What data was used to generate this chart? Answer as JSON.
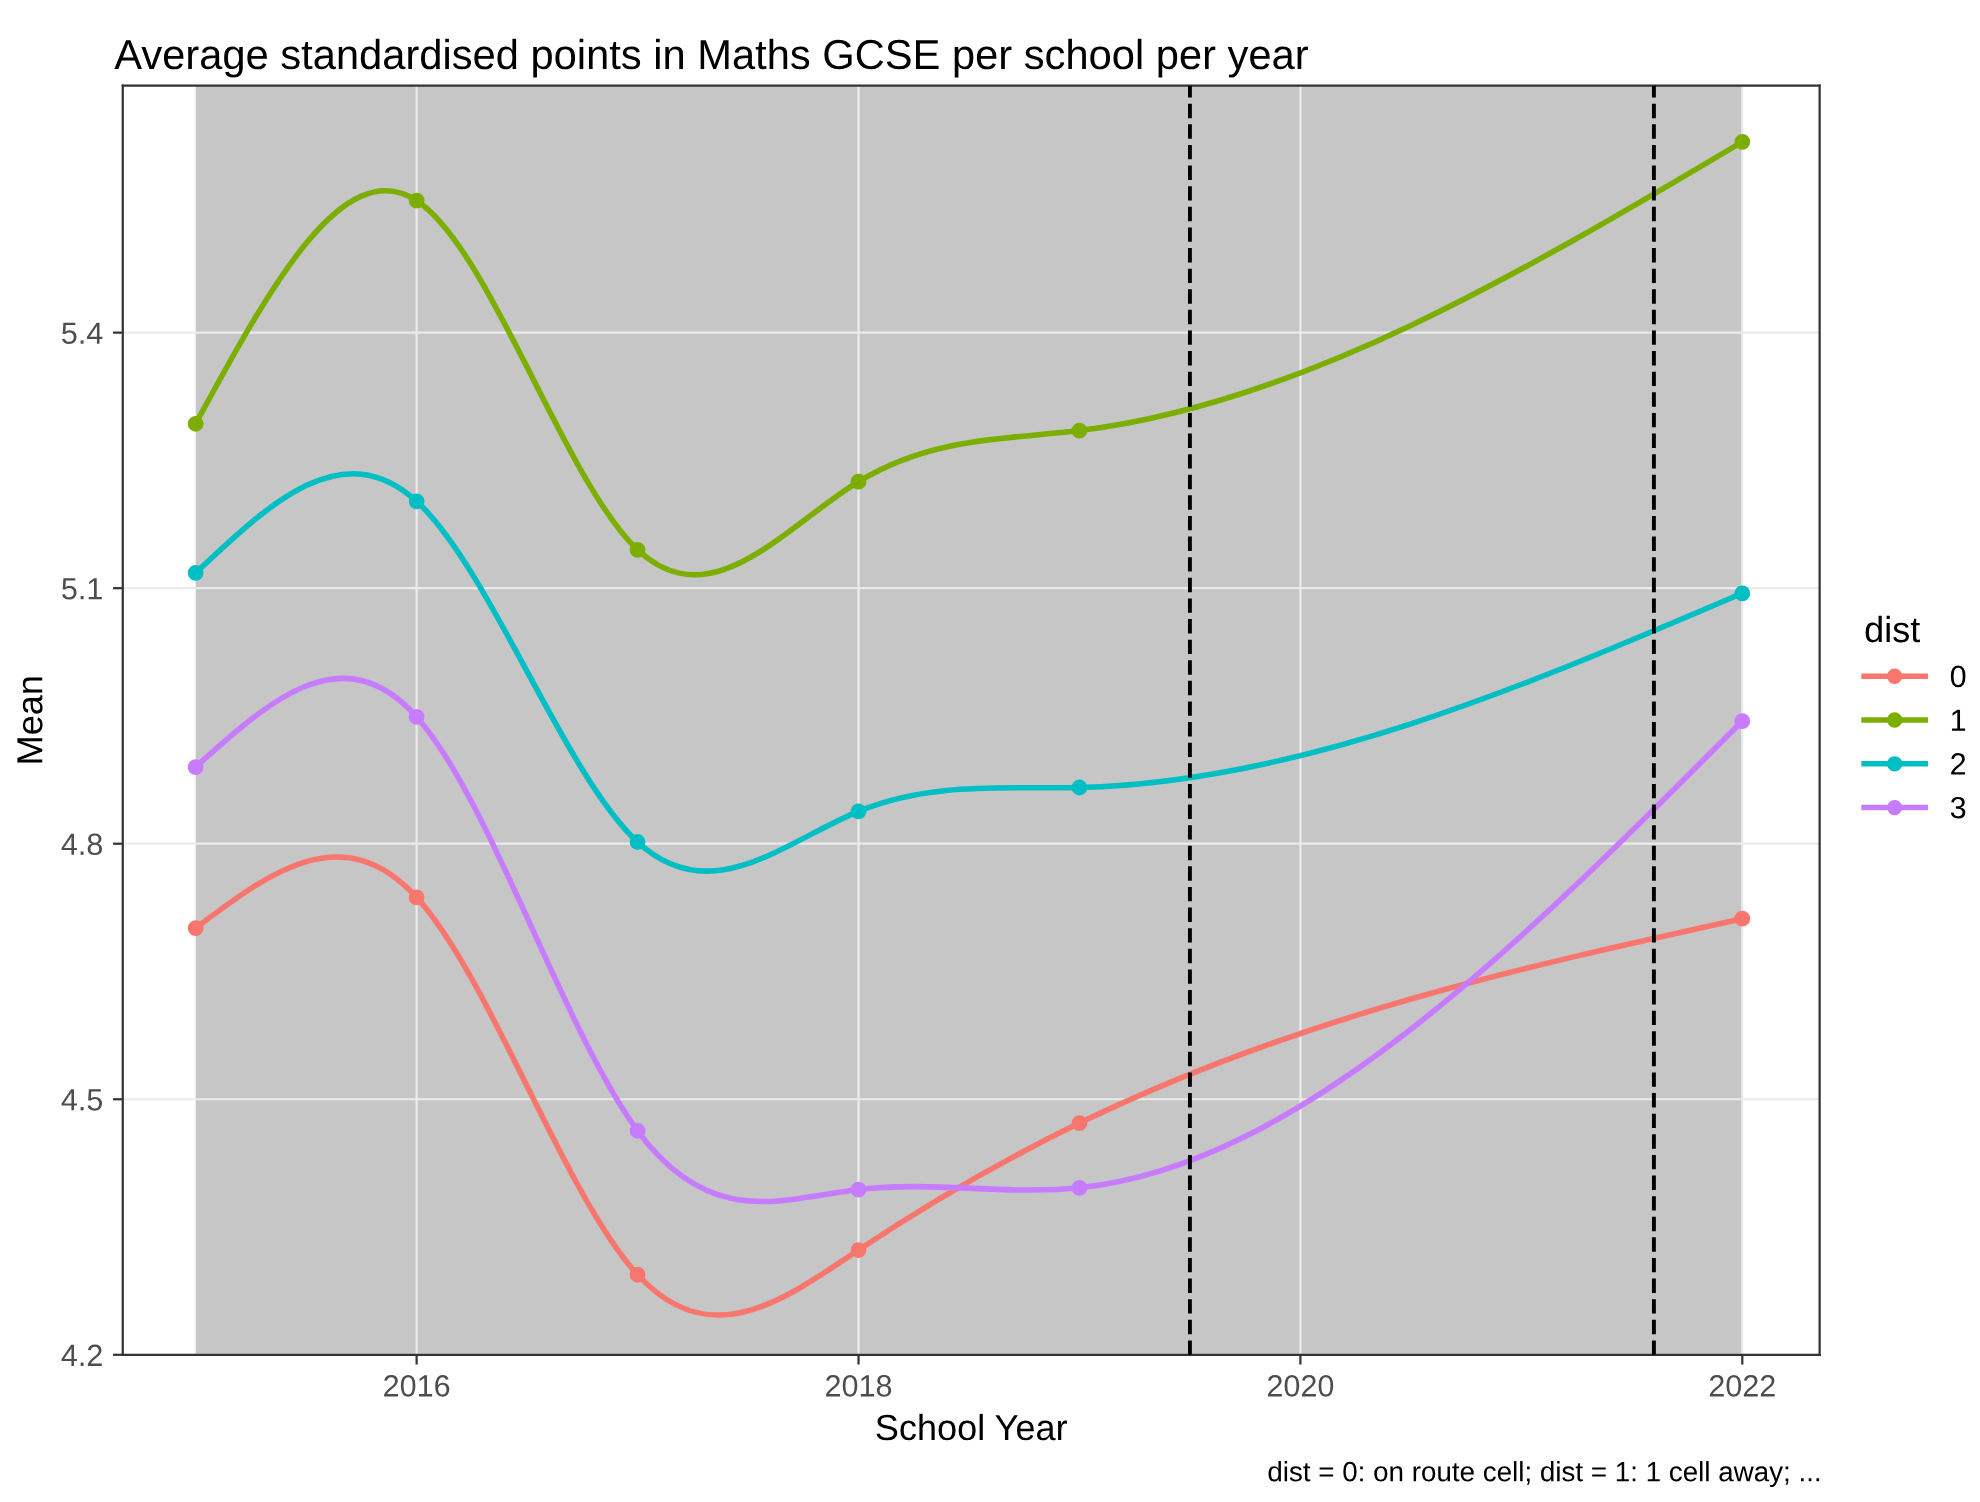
{
  "chart_data": {
    "type": "line",
    "title": "Average standardised points in Maths GCSE per school per year",
    "xlabel": "School Year",
    "ylabel": "Mean",
    "legend_title": "dist",
    "x": [
      2015,
      2016,
      2017,
      2018,
      2019,
      2022
    ],
    "series": [
      {
        "name": "0",
        "color": "#f8766d",
        "values": [
          4.701,
          4.737,
          4.294,
          4.323,
          4.472,
          4.712
        ]
      },
      {
        "name": "1",
        "color": "#7cae00",
        "values": [
          5.293,
          5.555,
          5.145,
          5.225,
          5.285,
          5.624
        ]
      },
      {
        "name": "2",
        "color": "#00bfc4",
        "values": [
          5.118,
          5.202,
          4.802,
          4.838,
          4.866,
          5.094
        ]
      },
      {
        "name": "3",
        "color": "#c77cff",
        "values": [
          4.89,
          4.949,
          4.463,
          4.394,
          4.396,
          4.944
        ]
      }
    ],
    "xlim": [
      2014.67,
      2022.35
    ],
    "xticks": [
      2016,
      2018,
      2020,
      2022
    ],
    "ylim": [
      4.2,
      5.69
    ],
    "yticks": [
      4.2,
      4.5,
      4.8,
      5.1,
      5.4
    ],
    "ref_lines": [
      {
        "axis": "x",
        "value": 2019.5,
        "color": "#000000",
        "line_style": "dashed"
      },
      {
        "axis": "x",
        "value": 2021.6,
        "color": "#000000",
        "line_style": "dashed"
      }
    ],
    "bands": [
      {
        "axis": "x",
        "from": 2015,
        "to": 2022,
        "color": "#c6c6c6"
      }
    ],
    "grid": true,
    "legend": "right",
    "marker": "circle",
    "line_style": "solid",
    "annotations": [
      "dist = 0: on route cell; dist = 1: 1 cell away; ..."
    ]
  }
}
